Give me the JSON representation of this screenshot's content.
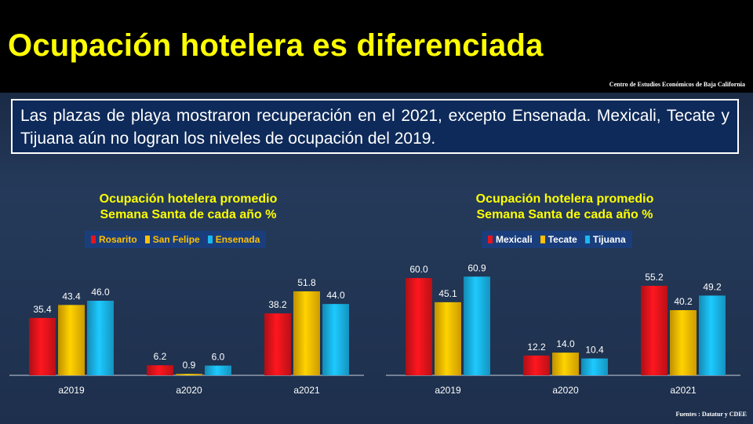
{
  "header": {
    "title": "Ocupación hotelera es diferenciada",
    "org": "Centro de Estudios  Económicos  de  Baja California"
  },
  "callout": {
    "text": "Las plazas de playa mostraron recuperación en el 2021, excepto Ensenada. Mexicali, Tecate y Tijuana aún no logran los niveles de ocupación del 2019."
  },
  "footer": {
    "source": "Fuentes : Datatur  y  CDEE"
  },
  "colors": {
    "red": "#e8141c",
    "yellow": "#ffc000",
    "blue": "#1ab8ef",
    "title": "#ffff00",
    "legend_bg": "#1a3e7c"
  },
  "chart_data": [
    {
      "type": "bar",
      "title_line1": "Ocupación hotelera promedio",
      "title_line2": "Semana Santa de cada año %",
      "categories": [
        "a2019",
        "a2020",
        "a2021"
      ],
      "series": [
        {
          "name": "Rosarito",
          "color": "#e8141c",
          "values": [
            35.4,
            6.2,
            38.2
          ]
        },
        {
          "name": "San Felipe",
          "color": "#ffc000",
          "values": [
            43.4,
            0.9,
            51.8
          ]
        },
        {
          "name": "Ensenada",
          "color": "#1ab8ef",
          "values": [
            46.0,
            6.0,
            44.0
          ]
        }
      ],
      "ylim": [
        0,
        62
      ],
      "legend_position": "top"
    },
    {
      "type": "bar",
      "title_line1": "Ocupación hotelera promedio",
      "title_line2": "Semana Santa de cada año %",
      "categories": [
        "a2019",
        "a2020",
        "a2021"
      ],
      "series": [
        {
          "name": "Mexicali",
          "color": "#e8141c",
          "values": [
            60.0,
            12.2,
            55.2
          ]
        },
        {
          "name": "Tecate",
          "color": "#ffc000",
          "values": [
            45.1,
            14.0,
            40.2
          ]
        },
        {
          "name": "Tijuana",
          "color": "#1ab8ef",
          "values": [
            60.9,
            10.4,
            49.2
          ]
        }
      ],
      "ylim": [
        0,
        62
      ],
      "legend_position": "top"
    }
  ]
}
